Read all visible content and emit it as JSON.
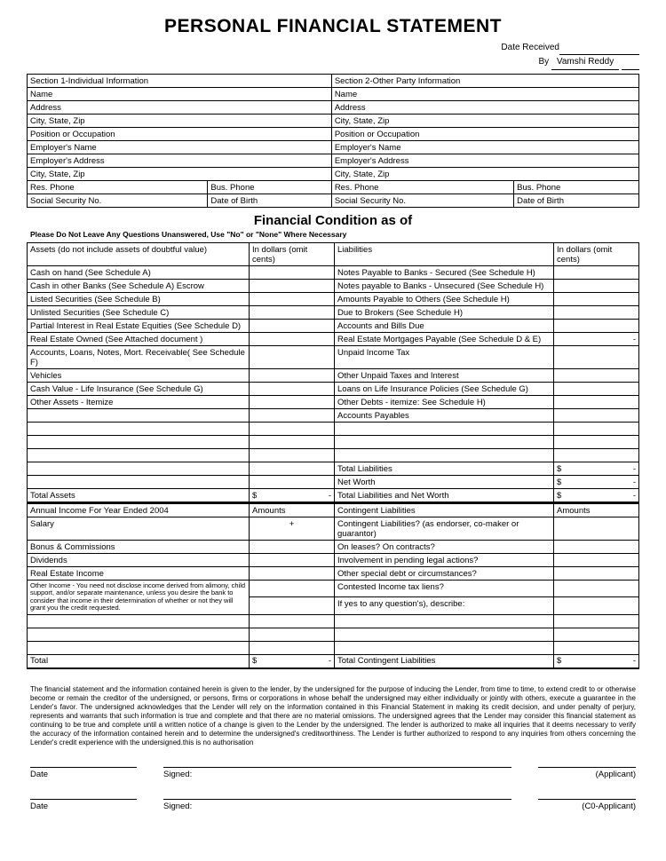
{
  "title": "PERSONAL FINANCIAL STATEMENT",
  "meta": {
    "date_received_label": "Date Received",
    "by_label": "By",
    "by_value": "Vamshi Reddy"
  },
  "sections": {
    "s1_header": "Section 1-Individual Information",
    "s2_header": "Section 2-Other Party Information",
    "rows": [
      {
        "l": "Name",
        "r": "Name"
      },
      {
        "l": "Address",
        "r": "Address"
      },
      {
        "l": "City, State, Zip",
        "r": "City, State, Zip"
      },
      {
        "l": "Position or Occupation",
        "r": "Position or Occupation"
      },
      {
        "l": "Employer's Name",
        "r": "Employer's Name"
      },
      {
        "l": "Employer's Address",
        "r": "Employer's Address"
      },
      {
        "l": "City, State, Zip",
        "r": "City, State, Zip"
      }
    ],
    "phone_left_a": "Res. Phone",
    "phone_left_b": "Bus. Phone",
    "phone_right_a": "Res. Phone",
    "phone_right_b": "Bus. Phone",
    "ssn_left": "Social Security No.",
    "dob_left": "Date of Birth",
    "ssn_right": "Social Security No.",
    "dob_right": "Date of Birth"
  },
  "subtitle": "Financial Condition as of",
  "instruction": "Please Do Not Leave Any Questions Unanswered, Use \"No\" or \"None\" Where Necessary",
  "assets": {
    "header": "Assets (do not include assets of doubtful value)",
    "amount_header": "In dollars (omit cents)",
    "items": [
      "Cash on hand (See Schedule A)",
      "Cash in other Banks (See Schedule A) Escrow",
      "Listed Securities (See Schedule B)",
      "Unlisted Securities (See Schedule C)",
      "Partial Interest in Real Estate Equities (See Schedule D)",
      "Real Estate Owned (See Attached document )",
      "Accounts, Loans, Notes, Mort. Receivable( See Schedule F)",
      "Vehicles",
      "Cash Value - Life Insurance (See Schedule G)",
      "Other Assets - Itemize"
    ],
    "total_label": "Total Assets"
  },
  "liabilities": {
    "header": "Liabilities",
    "amount_header": "In dollars (omit cents)",
    "items": [
      "Notes Payable to Banks - Secured (See Schedule H)",
      "Notes payable to Banks - Unsecured (See Schedule H)",
      "Amounts Payable to Others (See Schedule H)",
      "Due to Brokers (See Schedule H)",
      "Accounts and Bills Due",
      "Real Estate Mortgages Payable (See Schedule D & E)",
      "Unpaid Income Tax",
      "Other Unpaid Taxes and Interest",
      "Loans on Life Insurance Policies (See Schedule G)",
      "Other Debts - itemize: See Schedule  H)",
      "Accounts Payables"
    ],
    "total_liab": "Total Liabilities",
    "net_worth": "Net Worth",
    "total_lw": "Total Liabilities and Net Worth"
  },
  "income": {
    "header": "Annual Income For Year Ended 2004",
    "amount_header": "Amounts",
    "items": [
      "Salary",
      "Bonus & Commissions",
      "Dividends",
      "Real Estate Income"
    ],
    "other_note": "Other Income - You need not disclose income derived from alimony, child support, and/or separate maintenance, unless you desire the bank to consider that income in their determination of whether or not they will grant you the credit requested.",
    "total": "Total",
    "plus": "+"
  },
  "contingent": {
    "header": "Contingent Liabilities",
    "amount_header": "Amounts",
    "items": [
      "Contingent Liabilities? (as endorser, co-maker or guarantor)",
      "On leases? On contracts?",
      "Involvement in pending legal actions?",
      "Other special debt or circumstances?",
      "Contested Income tax liens?",
      "If yes to any question's), describe:"
    ],
    "total": "Total Contingent Liabilities"
  },
  "fineprint": "The financial statement and the information contained herein is given to the lender, by the undersigned for the purpose of inducing the Lender, from time to time, to extend credit to or otherwise become or remain the creditor of the undersigned, or persons, firms or corporations in whose behalf the undersigned may either individually or jointly with others, execute a guarantee in the Lender's favor. The undersigned acknowledges that the Lender will rely on the information contained in this Financial Statement in making its credit decision, and under penalty of perjury, represents and warrants that such information is true and complete and that there are no material omissions. The undersigned agrees that the Lender may consider this financial statement as continuing to be true and complete until a written notice of a change is given to the Lender by the undersigned. The lender is authorized to make all inquiries that it deems necessary to verify the accuracy of the information contained herein and to determine the undersigned's creditworthiness. The Lender is further authorized to respond to any inquiries from others concerning the Lender's credit experience with the undersigned.this is no authorisation",
  "sig": {
    "date": "Date",
    "signed": "Signed:",
    "applicant": "(Applicant)",
    "coapplicant": "(C0-Applicant)"
  },
  "currency": "$",
  "dash": "-"
}
